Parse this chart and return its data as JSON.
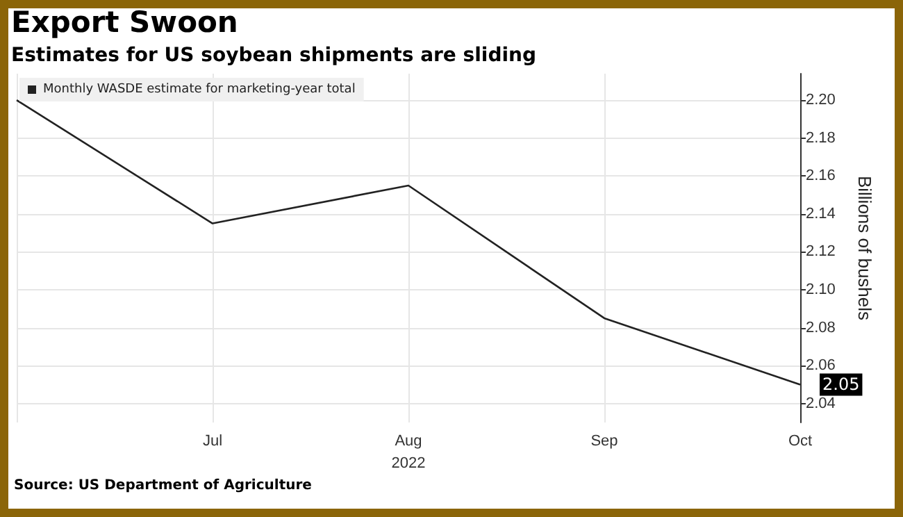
{
  "chart_data": {
    "type": "line",
    "title": "Export Swoon",
    "subtitle": "Estimates for US soybean shipments are sliding",
    "categories": [
      null,
      "Jul",
      "Aug",
      "Sep",
      "Oct"
    ],
    "xlabel": "2022",
    "ylabel": "Billions of bushels",
    "series": [
      {
        "name": "Monthly WASDE estimate for marketing-year total",
        "color": "#222222",
        "values": [
          2.2,
          2.135,
          2.155,
          2.085,
          2.05
        ],
        "value_labels": [
          null,
          null,
          null,
          null,
          "2.05"
        ]
      }
    ],
    "ylim": [
      2.03,
      2.214
    ],
    "yticks": [
      {
        "value": 2.04,
        "label": "2.04"
      },
      {
        "value": 2.06,
        "label": "2.06"
      },
      {
        "value": 2.08,
        "label": "2.08"
      },
      {
        "value": 2.1,
        "label": "2.10"
      },
      {
        "value": 2.12,
        "label": "2.12"
      },
      {
        "value": 2.14,
        "label": "2.14"
      },
      {
        "value": 2.16,
        "label": "2.16"
      },
      {
        "value": 2.18,
        "label": "2.18"
      },
      {
        "value": 2.2,
        "label": "2.20"
      }
    ],
    "grid": true,
    "legend": "top left",
    "marker": "none",
    "line_style": "solid",
    "annotations": [
      "Source: US Department of Agriculture"
    ]
  }
}
